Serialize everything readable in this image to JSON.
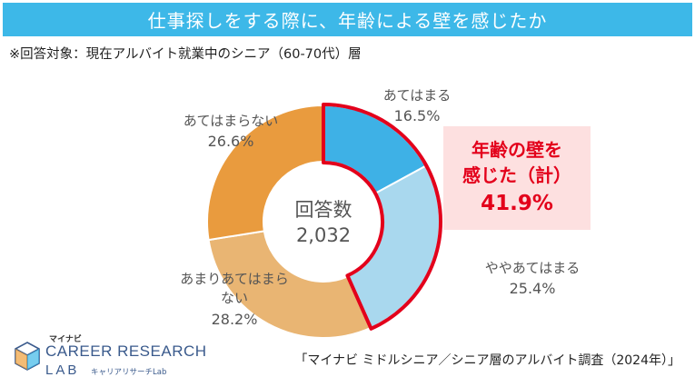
{
  "header": {
    "title": "仕事探しをする際に、年齢による壁を感じたか",
    "subtitle": "※回答対象：現在アルバイト就業中のシニア（60-70代）層"
  },
  "chart_data": {
    "type": "pie",
    "donut": true,
    "center_label": "回答数",
    "center_value": "2,032",
    "slices": [
      {
        "label": "あてはまる",
        "value": 16.5,
        "value_label": "16.5%",
        "color": "#3eb1e6"
      },
      {
        "label": "ややあてはまる",
        "value": 25.4,
        "value_label": "25.4%",
        "color": "#a9d8ee"
      },
      {
        "label": "あまりあてはまらない",
        "value": 28.2,
        "value_label": "28.2%",
        "color": "#e9b573"
      },
      {
        "label": "あてはまらない",
        "value": 26.6,
        "value_label": "26.6%",
        "color": "#e99b3e"
      }
    ],
    "highlight_color": "#e3001b"
  },
  "callout": {
    "line1": "年齢の壁を",
    "line2": "感じた（計）",
    "value": "41.9%"
  },
  "source": "「マイナビ ミドルシニア／シニア層のアルバイト調査（2024年）」",
  "logo": {
    "small": "マイナビ",
    "main": "CAREER RESEARCH",
    "lab": "LAB",
    "jp": "キャリアリサーチLab"
  }
}
